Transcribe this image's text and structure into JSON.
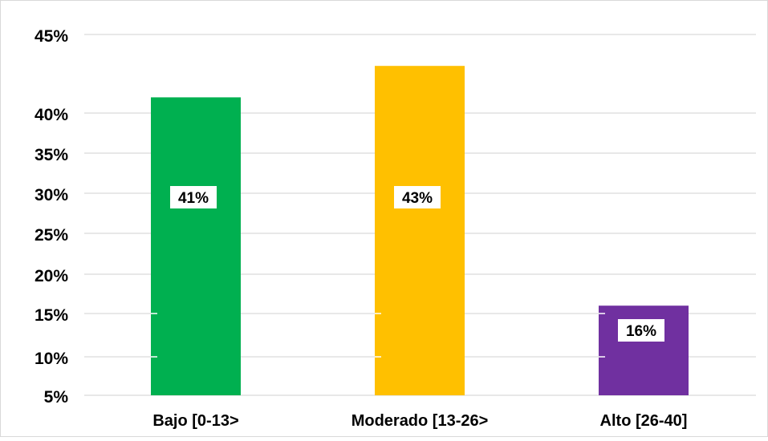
{
  "chart_data": {
    "type": "bar",
    "categories": [
      "Bajo [0-13>",
      "Moderado [13-26>",
      "Alto [26-40]"
    ],
    "values": [
      41,
      43,
      16
    ],
    "value_labels": [
      "41%",
      "43%",
      "16%"
    ],
    "colors": [
      "#00B050",
      "#FFC000",
      "#7030A0"
    ],
    "yticks": [
      "5%",
      "10%",
      "15%",
      "20%",
      "25%",
      "30%",
      "35%",
      "40%",
      "45%"
    ],
    "ylim": [
      0,
      45
    ],
    "grid": true,
    "legend": "none"
  }
}
